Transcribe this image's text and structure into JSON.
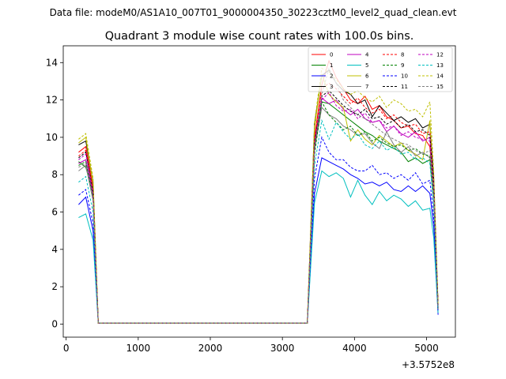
{
  "chart_data": {
    "type": "line",
    "suptitle": "Data file: modeM0/AS1A10_007T01_9000004350_30223cztM0_level2_quad_clean.evt",
    "title": "Quadrant 3 module wise count rates with 100.0s bins.",
    "xlabel": "",
    "ylabel": "",
    "x_offset_label": "+3.5752e8",
    "xlim": [
      -40,
      5400
    ],
    "ylim": [
      -0.7,
      14.9
    ],
    "x_ticks": [
      0,
      1000,
      2000,
      3000,
      4000,
      5000
    ],
    "x_tick_labels": [
      "0",
      "1000",
      "2000",
      "3000",
      "4000",
      "5000"
    ],
    "y_ticks": [
      0,
      2,
      4,
      6,
      8,
      10,
      12,
      14
    ],
    "y_tick_labels": [
      "0",
      "2",
      "4",
      "6",
      "8",
      "10",
      "12",
      "14"
    ],
    "legend_position": "top-right",
    "x_first": [
      173,
      273,
      373,
      446
    ],
    "x_gap": [
      446,
      546,
      3346,
      3446
    ],
    "x_second": [
      3446,
      3546,
      3646,
      3746,
      3846,
      3946,
      4046,
      4146,
      4246,
      4346,
      4446,
      4546,
      4646,
      4746,
      4846,
      4946,
      5046,
      5100,
      5160
    ],
    "series": [
      {
        "name": "0",
        "color": "#ff0000",
        "dash": false,
        "first": [
          9.2,
          9.5,
          7.3,
          0.05
        ],
        "second": [
          10.0,
          12.8,
          14.1,
          13.2,
          12.6,
          12.0,
          11.8,
          12.2,
          11.5,
          11.7,
          11.1,
          10.9,
          10.5,
          10.6,
          10.2,
          10.1,
          9.5,
          7.0,
          1.0
        ]
      },
      {
        "name": "1",
        "color": "#008000",
        "dash": false,
        "first": [
          8.7,
          8.4,
          7.0,
          0.05
        ],
        "second": [
          9.5,
          11.9,
          11.8,
          11.5,
          11.2,
          10.9,
          10.6,
          10.3,
          10.1,
          9.8,
          9.6,
          9.4,
          9.2,
          8.7,
          8.9,
          8.6,
          8.8,
          6.5,
          0.8
        ]
      },
      {
        "name": "2",
        "color": "#0000ff",
        "dash": false,
        "first": [
          6.4,
          6.8,
          5.0,
          0.05
        ],
        "second": [
          7.0,
          8.9,
          8.7,
          8.5,
          8.3,
          8.0,
          7.8,
          7.5,
          7.6,
          7.4,
          7.6,
          7.2,
          7.1,
          7.4,
          7.1,
          7.4,
          7.0,
          5.2,
          0.5
        ]
      },
      {
        "name": "3",
        "color": "#000000",
        "dash": false,
        "first": [
          9.6,
          9.8,
          7.6,
          0.05
        ],
        "second": [
          10.7,
          13.3,
          13.6,
          12.9,
          12.5,
          12.3,
          11.8,
          12.0,
          11.1,
          11.7,
          11.3,
          10.9,
          11.1,
          10.8,
          11.0,
          10.5,
          10.7,
          7.8,
          1.0
        ]
      },
      {
        "name": "4",
        "color": "#bf00bf",
        "dash": false,
        "first": [
          8.6,
          8.8,
          6.9,
          0.05
        ],
        "second": [
          9.8,
          12.1,
          11.8,
          12.0,
          11.5,
          11.2,
          11.5,
          11.0,
          10.8,
          10.9,
          10.3,
          10.6,
          10.2,
          10.0,
          10.3,
          9.8,
          10.0,
          7.4,
          0.9
        ]
      },
      {
        "name": "5",
        "color": "#00bfbf",
        "dash": false,
        "first": [
          5.7,
          5.9,
          4.5,
          0.05
        ],
        "second": [
          6.5,
          8.2,
          7.9,
          8.1,
          7.8,
          6.8,
          7.7,
          6.9,
          6.4,
          7.1,
          6.6,
          6.9,
          6.7,
          6.3,
          6.6,
          6.1,
          6.2,
          4.6,
          0.6
        ]
      },
      {
        "name": "6",
        "color": "#bfbf00",
        "dash": false,
        "first": [
          9.7,
          10.0,
          7.5,
          0.05
        ],
        "second": [
          10.5,
          13.4,
          12.3,
          11.9,
          11.6,
          9.8,
          10.4,
          9.9,
          9.6,
          10.1,
          9.8,
          9.5,
          9.7,
          9.3,
          9.1,
          8.8,
          10.9,
          7.1,
          0.9
        ]
      },
      {
        "name": "7",
        "color": "#7f7f7f",
        "dash": false,
        "first": [
          8.2,
          8.5,
          6.6,
          0.05
        ],
        "second": [
          9.3,
          11.6,
          11.2,
          11.0,
          10.6,
          10.4,
          10.1,
          10.2,
          9.7,
          9.4,
          10.3,
          9.6,
          9.2,
          9.5,
          9.0,
          9.2,
          8.9,
          6.6,
          0.8
        ]
      },
      {
        "name": "8",
        "color": "#ff0000",
        "dash": true,
        "first": [
          9.0,
          9.3,
          7.2,
          0.05
        ],
        "second": [
          9.9,
          12.6,
          12.9,
          12.6,
          12.2,
          11.8,
          12.1,
          11.6,
          11.3,
          11.5,
          11.0,
          11.2,
          10.8,
          10.6,
          10.7,
          10.2,
          10.3,
          7.5,
          1.0
        ]
      },
      {
        "name": "9",
        "color": "#008000",
        "dash": true,
        "first": [
          8.5,
          8.7,
          6.8,
          0.05
        ],
        "second": [
          9.1,
          11.9,
          11.2,
          10.8,
          10.4,
          10.6,
          10.1,
          10.3,
          9.8,
          10.0,
          9.7,
          9.5,
          9.6,
          9.3,
          9.4,
          9.1,
          9.0,
          6.8,
          0.8
        ]
      },
      {
        "name": "10",
        "color": "#0000ff",
        "dash": true,
        "first": [
          6.9,
          7.2,
          5.4,
          0.05
        ],
        "second": [
          7.8,
          10.0,
          9.2,
          8.8,
          8.8,
          8.4,
          8.2,
          8.2,
          8.5,
          8.0,
          8.1,
          7.8,
          8.0,
          7.7,
          8.1,
          7.5,
          7.7,
          5.7,
          0.7
        ]
      },
      {
        "name": "11",
        "color": "#000000",
        "dash": true,
        "first": [
          8.9,
          9.2,
          7.1,
          0.05
        ],
        "second": [
          9.7,
          12.2,
          12.5,
          12.1,
          11.7,
          11.4,
          11.2,
          11.5,
          11.0,
          11.1,
          10.7,
          10.9,
          10.5,
          10.7,
          10.3,
          10.4,
          10.1,
          7.4,
          0.9
        ]
      },
      {
        "name": "12",
        "color": "#bf00bf",
        "dash": true,
        "first": [
          8.8,
          9.1,
          7.0,
          0.05
        ],
        "second": [
          9.6,
          12.0,
          12.4,
          11.7,
          11.4,
          11.5,
          11.0,
          11.3,
          10.8,
          10.9,
          10.5,
          10.6,
          10.1,
          10.3,
          10.0,
          9.9,
          9.8,
          7.2,
          0.9
        ]
      },
      {
        "name": "13",
        "color": "#00bfbf",
        "dash": true,
        "first": [
          7.6,
          7.9,
          6.0,
          0.05
        ],
        "second": [
          8.5,
          10.9,
          9.9,
          10.8,
          10.3,
          9.9,
          10.2,
          9.6,
          9.4,
          9.8,
          9.3,
          9.5,
          9.1,
          9.2,
          8.8,
          8.9,
          8.6,
          6.4,
          0.8
        ]
      },
      {
        "name": "14",
        "color": "#bfbf00",
        "dash": true,
        "first": [
          9.9,
          10.2,
          7.8,
          0.05
        ],
        "second": [
          10.8,
          13.7,
          13.5,
          13.1,
          12.6,
          12.3,
          12.5,
          12.1,
          11.9,
          12.2,
          11.6,
          12.0,
          11.8,
          11.4,
          11.5,
          11.1,
          11.9,
          8.1,
          1.1
        ]
      },
      {
        "name": "15",
        "color": "#7f7f7f",
        "dash": true,
        "first": [
          8.4,
          8.6,
          6.7,
          0.05
        ],
        "second": [
          9.4,
          12.3,
          13.7,
          12.9,
          12.0,
          11.6,
          11.2,
          11.0,
          10.7,
          10.4,
          10.1,
          9.9,
          9.7,
          9.6,
          9.3,
          9.1,
          9.3,
          6.9,
          0.8
        ]
      }
    ]
  }
}
